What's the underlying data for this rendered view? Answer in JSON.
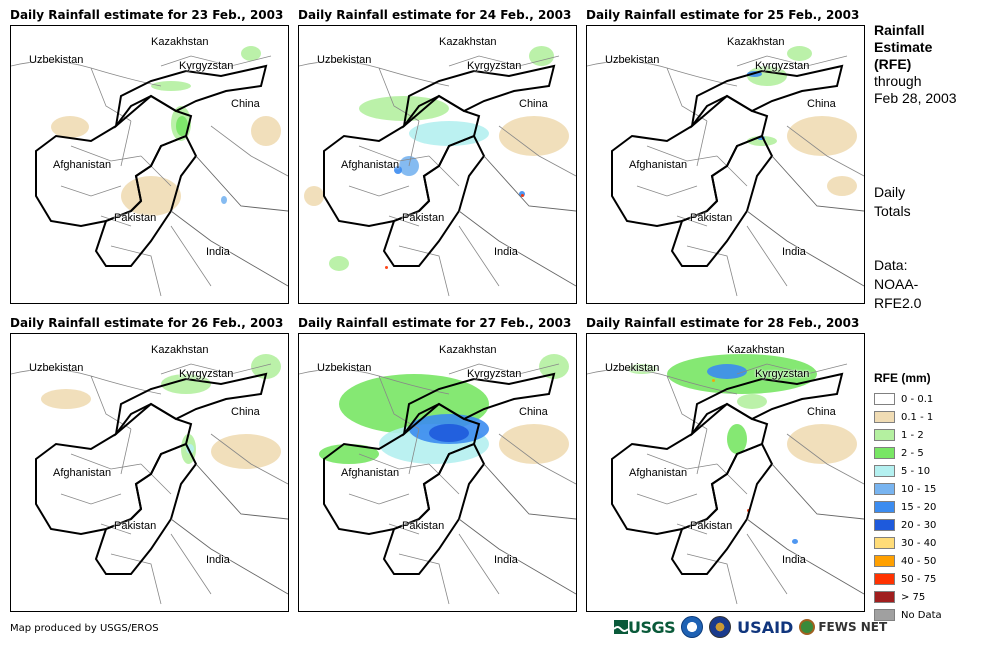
{
  "panels": [
    {
      "title": "Daily Rainfall estimate for 23 Feb., 2003"
    },
    {
      "title": "Daily Rainfall estimate for 24 Feb., 2003"
    },
    {
      "title": "Daily Rainfall estimate for 25 Feb., 2003"
    },
    {
      "title": "Daily Rainfall estimate for 26 Feb., 2003"
    },
    {
      "title": "Daily Rainfall estimate for 27 Feb., 2003"
    },
    {
      "title": "Daily Rainfall estimate for 28 Feb., 2003"
    }
  ],
  "map_labels": {
    "kazakhstan": "Kazakhstan",
    "uzbekistan": "Uzbekistan",
    "kyrgyzstan": "Kyrgyzstan",
    "china": "China",
    "afghanistan": "Afghanistan",
    "pakistan": "Pakistan",
    "india": "India"
  },
  "side": {
    "title_bold": [
      "Rainfall",
      "Estimate",
      "(RFE)"
    ],
    "through": "through",
    "date": "Feb 28, 2003",
    "totals_1": "Daily",
    "totals_2": "Totals",
    "data_1": "Data:",
    "data_2": "NOAA-",
    "data_3": "RFE2.0"
  },
  "legend": {
    "title": "RFE (mm)",
    "items": [
      {
        "label": "0 - 0.1",
        "color": "#ffffff"
      },
      {
        "label": "0.1 - 1",
        "color": "#f0dcb4"
      },
      {
        "label": "1 - 2",
        "color": "#b4f0a0"
      },
      {
        "label": "2 - 5",
        "color": "#78e664"
      },
      {
        "label": "5 - 10",
        "color": "#b4f0f0"
      },
      {
        "label": "10 - 15",
        "color": "#78b4f0"
      },
      {
        "label": "15 - 20",
        "color": "#3c8cf0"
      },
      {
        "label": "20 - 30",
        "color": "#1e5adc"
      },
      {
        "label": "30 - 40",
        "color": "#ffdc78"
      },
      {
        "label": "40 - 50",
        "color": "#ffa000"
      },
      {
        "label": "50 - 75",
        "color": "#ff3200"
      },
      {
        "label": "> 75",
        "color": "#a01e1e"
      },
      {
        "label": "No Data",
        "color": "#a0a0a0"
      }
    ]
  },
  "footer": "Map produced by USGS/EROS",
  "logos": {
    "usgs": "USGS",
    "usaid": "USAID",
    "fews": "FEWS NET"
  }
}
